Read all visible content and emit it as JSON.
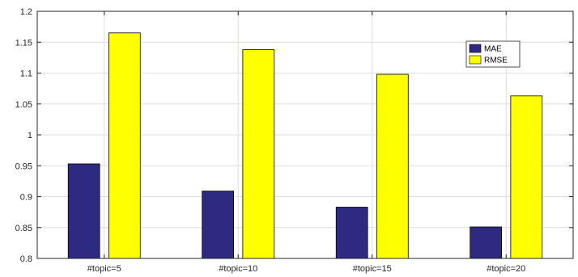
{
  "chart_data": {
    "type": "bar",
    "categories": [
      "#topic=5",
      "#topic=10",
      "#topic=15",
      "#topic=20"
    ],
    "series": [
      {
        "name": "MAE",
        "values": [
          0.953,
          0.909,
          0.883,
          0.851
        ],
        "color": "#2e2a82"
      },
      {
        "name": "RMSE",
        "values": [
          1.165,
          1.138,
          1.098,
          1.063
        ],
        "color": "#ffff00"
      }
    ],
    "title": "",
    "xlabel": "",
    "ylabel": "",
    "ylim": [
      0.8,
      1.2
    ],
    "yticks": [
      "0.8",
      "0.85",
      "0.9",
      "0.95",
      "1",
      "1.05",
      "1.1",
      "1.15",
      "1.2"
    ],
    "grid": true,
    "legend": "top-right",
    "colors": {
      "grid": "#dedede",
      "axis": "#262626",
      "bar_edge": "#000000",
      "background": "#ffffff"
    }
  }
}
